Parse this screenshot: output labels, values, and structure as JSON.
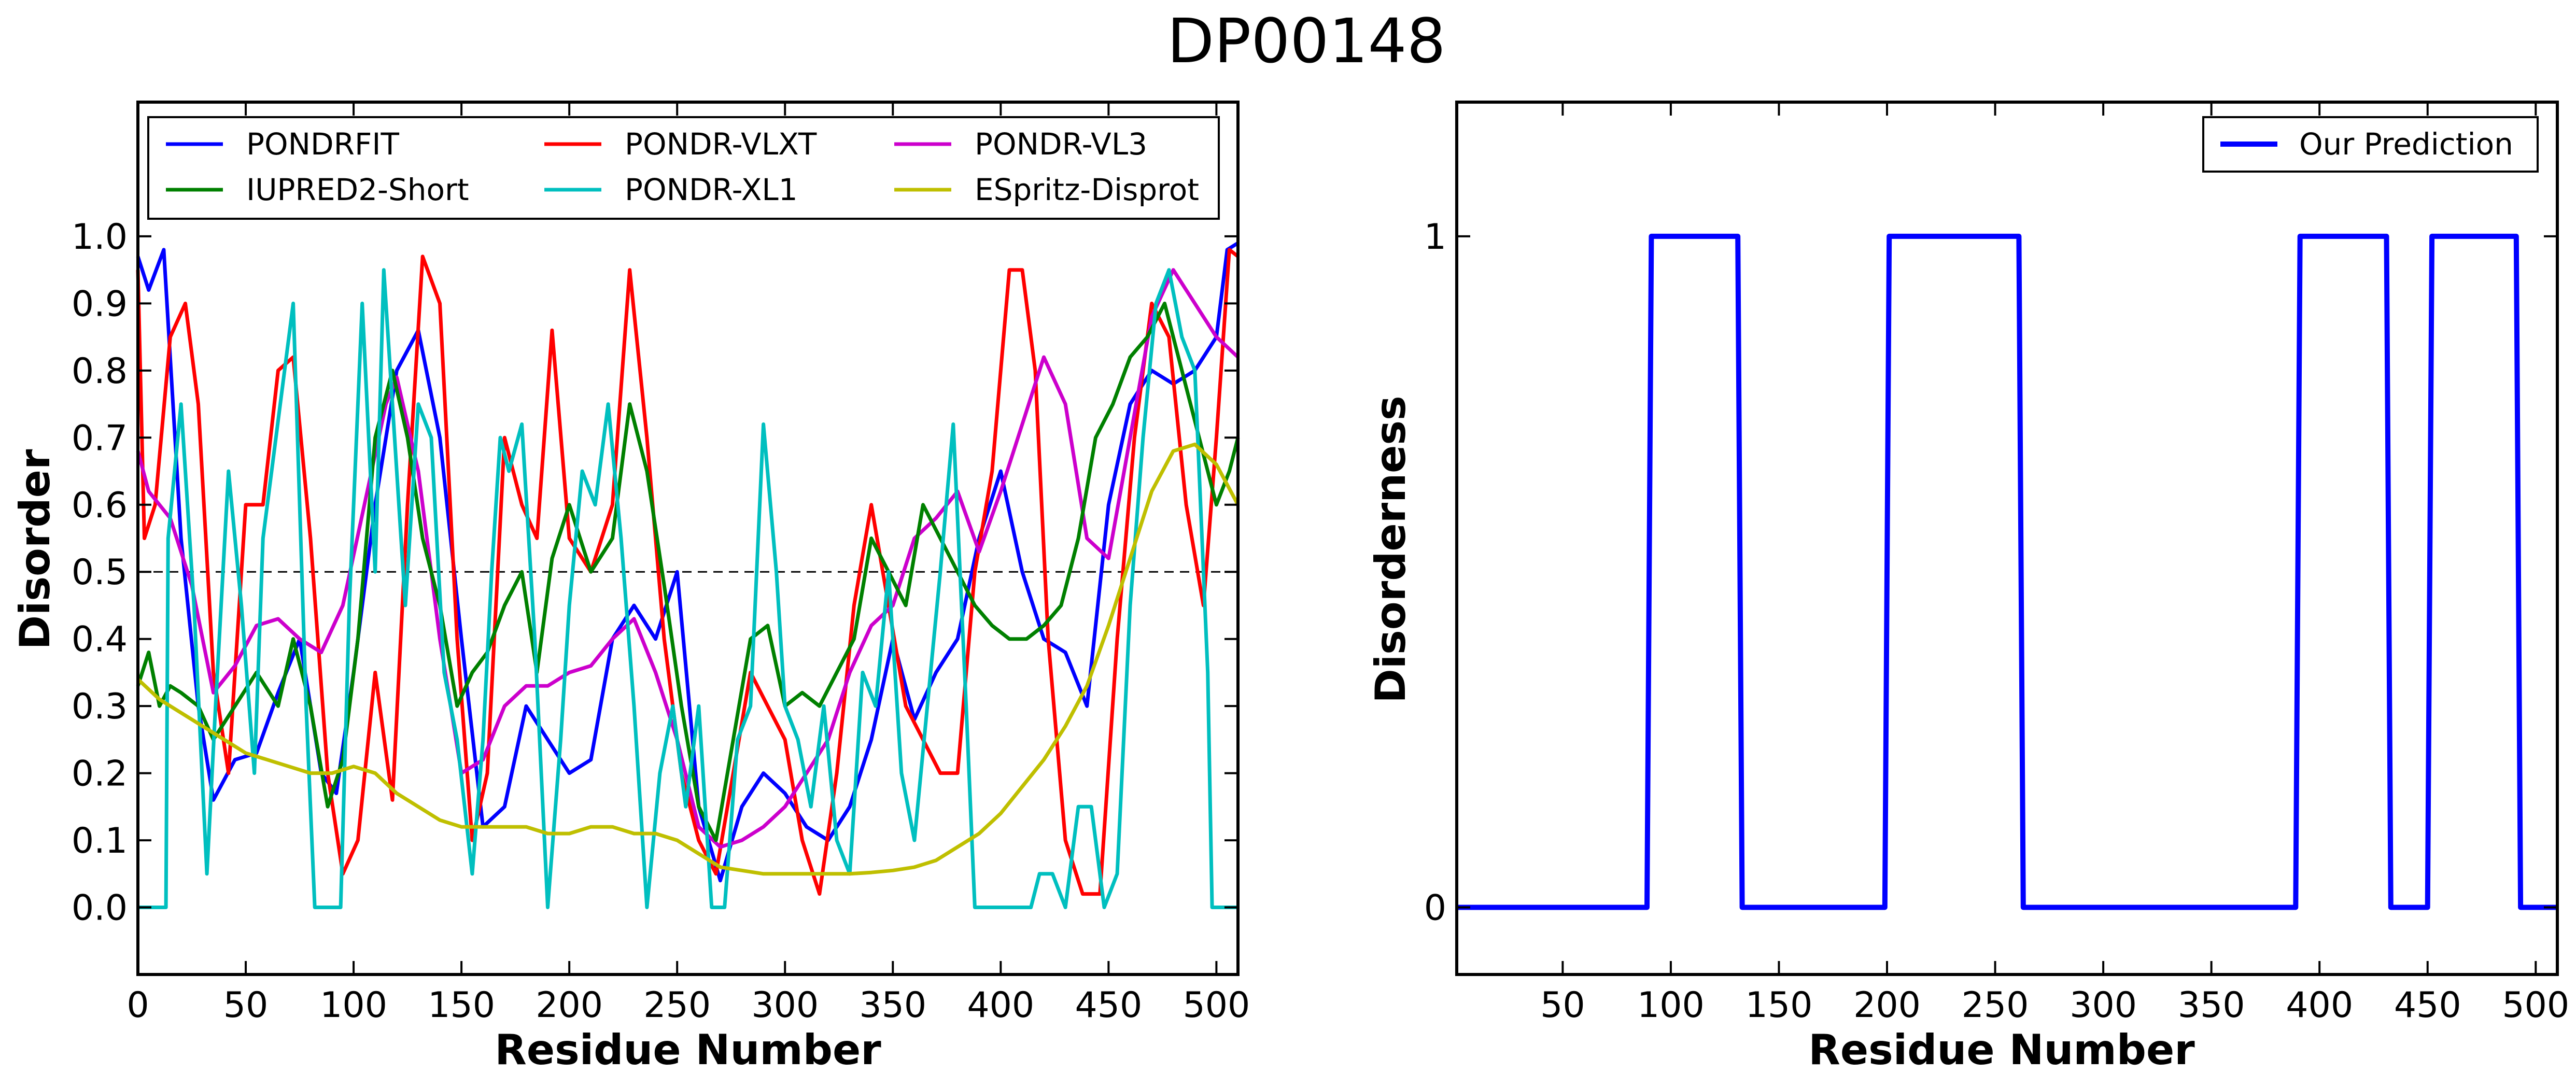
{
  "figure": {
    "title": "DP00148"
  },
  "chart_data": [
    {
      "type": "line",
      "xlabel": "Residue Number",
      "ylabel": "Disorder",
      "xlim": [
        0,
        510
      ],
      "ylim": [
        -0.1,
        1.2
      ],
      "xticks": [
        0,
        50,
        100,
        150,
        200,
        250,
        300,
        350,
        400,
        450,
        500
      ],
      "yticks": [
        0.0,
        0.1,
        0.2,
        0.3,
        0.4,
        0.5,
        0.6,
        0.7,
        0.8,
        0.9,
        1.0
      ],
      "ytick_labels": [
        "0.0",
        "0.1",
        "0.2",
        "0.3",
        "0.4",
        "0.5",
        "0.6",
        "0.7",
        "0.8",
        "0.9",
        "1.0"
      ],
      "threshold": 0.5,
      "legend_position": "top",
      "legend_columns": 3,
      "series": [
        {
          "name": "PONDRFIT",
          "color": "#0000ff",
          "x": [
            0,
            5,
            12,
            20,
            28,
            35,
            45,
            55,
            65,
            75,
            85,
            92,
            100,
            110,
            120,
            130,
            140,
            150,
            160,
            170,
            180,
            190,
            200,
            210,
            220,
            230,
            240,
            250,
            260,
            270,
            280,
            290,
            300,
            310,
            320,
            330,
            340,
            350,
            360,
            370,
            380,
            390,
            400,
            410,
            420,
            430,
            440,
            450,
            460,
            470,
            480,
            490,
            500,
            505,
            510
          ],
          "y": [
            0.97,
            0.92,
            0.98,
            0.55,
            0.3,
            0.16,
            0.22,
            0.23,
            0.32,
            0.4,
            0.2,
            0.17,
            0.35,
            0.6,
            0.8,
            0.86,
            0.7,
            0.4,
            0.12,
            0.15,
            0.3,
            0.25,
            0.2,
            0.22,
            0.4,
            0.45,
            0.4,
            0.5,
            0.15,
            0.04,
            0.15,
            0.2,
            0.17,
            0.12,
            0.1,
            0.15,
            0.25,
            0.4,
            0.28,
            0.35,
            0.4,
            0.55,
            0.65,
            0.5,
            0.4,
            0.38,
            0.3,
            0.6,
            0.75,
            0.8,
            0.78,
            0.8,
            0.85,
            0.98,
            0.99
          ]
        },
        {
          "name": "PONDR-VLXT",
          "color": "#ff0000",
          "x": [
            0,
            3,
            8,
            15,
            22,
            28,
            35,
            42,
            50,
            58,
            65,
            72,
            80,
            88,
            95,
            102,
            110,
            118,
            125,
            132,
            140,
            148,
            155,
            162,
            170,
            178,
            185,
            192,
            200,
            210,
            220,
            228,
            236,
            244,
            252,
            260,
            268,
            276,
            284,
            292,
            300,
            308,
            316,
            324,
            332,
            340,
            348,
            356,
            364,
            372,
            380,
            388,
            396,
            404,
            410,
            416,
            422,
            430,
            438,
            446,
            454,
            462,
            470,
            478,
            486,
            494,
            500,
            506,
            510
          ],
          "y": [
            0.95,
            0.55,
            0.6,
            0.85,
            0.9,
            0.75,
            0.35,
            0.2,
            0.6,
            0.6,
            0.8,
            0.82,
            0.55,
            0.2,
            0.05,
            0.1,
            0.35,
            0.16,
            0.6,
            0.97,
            0.9,
            0.4,
            0.1,
            0.2,
            0.7,
            0.6,
            0.55,
            0.86,
            0.55,
            0.5,
            0.6,
            0.95,
            0.7,
            0.4,
            0.2,
            0.1,
            0.05,
            0.2,
            0.35,
            0.3,
            0.25,
            0.1,
            0.02,
            0.2,
            0.45,
            0.6,
            0.45,
            0.3,
            0.25,
            0.2,
            0.2,
            0.5,
            0.65,
            0.95,
            0.95,
            0.8,
            0.4,
            0.1,
            0.02,
            0.02,
            0.4,
            0.7,
            0.9,
            0.85,
            0.6,
            0.45,
            0.7,
            0.98,
            0.97
          ]
        },
        {
          "name": "PONDR-VL3",
          "color": "#cc00cc",
          "x": [
            0,
            5,
            15,
            25,
            35,
            45,
            55,
            65,
            75,
            85,
            95,
            105,
            115,
            120,
            130,
            140,
            150,
            160,
            170,
            180,
            190,
            200,
            210,
            220,
            230,
            240,
            250,
            260,
            270,
            280,
            290,
            300,
            310,
            320,
            330,
            340,
            350,
            360,
            370,
            380,
            390,
            400,
            410,
            420,
            430,
            440,
            450,
            460,
            470,
            480,
            490,
            500,
            510
          ],
          "y": [
            0.68,
            0.62,
            0.58,
            0.48,
            0.32,
            0.36,
            0.42,
            0.43,
            0.4,
            0.38,
            0.45,
            0.6,
            0.75,
            0.79,
            0.65,
            0.4,
            0.2,
            0.22,
            0.3,
            0.33,
            0.33,
            0.35,
            0.36,
            0.4,
            0.43,
            0.35,
            0.25,
            0.12,
            0.09,
            0.1,
            0.12,
            0.15,
            0.2,
            0.25,
            0.35,
            0.42,
            0.45,
            0.55,
            0.58,
            0.62,
            0.53,
            0.62,
            0.72,
            0.82,
            0.75,
            0.55,
            0.52,
            0.7,
            0.88,
            0.95,
            0.9,
            0.85,
            0.82
          ]
        },
        {
          "name": "IUPRED2-Short",
          "color": "#008000",
          "x": [
            0,
            5,
            10,
            15,
            20,
            28,
            35,
            45,
            55,
            65,
            72,
            80,
            88,
            95,
            102,
            110,
            118,
            125,
            132,
            140,
            148,
            155,
            162,
            170,
            178,
            185,
            192,
            200,
            210,
            220,
            228,
            236,
            244,
            252,
            260,
            268,
            276,
            284,
            292,
            300,
            308,
            316,
            324,
            332,
            340,
            348,
            356,
            364,
            372,
            380,
            388,
            396,
            404,
            412,
            420,
            428,
            436,
            444,
            452,
            460,
            468,
            476,
            484,
            492,
            500,
            506,
            510
          ],
          "y": [
            0.33,
            0.38,
            0.3,
            0.33,
            0.32,
            0.3,
            0.25,
            0.3,
            0.35,
            0.3,
            0.4,
            0.3,
            0.15,
            0.22,
            0.4,
            0.7,
            0.8,
            0.7,
            0.55,
            0.45,
            0.3,
            0.35,
            0.38,
            0.45,
            0.5,
            0.35,
            0.52,
            0.6,
            0.5,
            0.55,
            0.75,
            0.65,
            0.48,
            0.3,
            0.15,
            0.1,
            0.25,
            0.4,
            0.42,
            0.3,
            0.32,
            0.3,
            0.35,
            0.4,
            0.55,
            0.5,
            0.45,
            0.6,
            0.55,
            0.5,
            0.45,
            0.42,
            0.4,
            0.4,
            0.42,
            0.45,
            0.55,
            0.7,
            0.75,
            0.82,
            0.85,
            0.9,
            0.8,
            0.7,
            0.6,
            0.65,
            0.7
          ]
        },
        {
          "name": "PONDR-XL1",
          "color": "#00bfbf",
          "x": [
            0,
            13,
            14,
            20,
            26,
            32,
            36,
            42,
            48,
            54,
            58,
            66,
            72,
            78,
            82,
            86,
            92,
            94,
            98,
            104,
            110,
            114,
            118,
            124,
            130,
            136,
            142,
            148,
            155,
            160,
            164,
            168,
            172,
            178,
            184,
            190,
            196,
            200,
            206,
            212,
            218,
            224,
            230,
            236,
            242,
            248,
            254,
            260,
            266,
            272,
            278,
            284,
            290,
            296,
            300,
            306,
            312,
            318,
            324,
            330,
            336,
            342,
            348,
            354,
            360,
            366,
            372,
            378,
            384,
            388,
            392,
            396,
            402,
            408,
            414,
            418,
            424,
            430,
            436,
            442,
            448,
            454,
            460,
            466,
            472,
            478,
            484,
            490,
            496,
            498,
            500,
            504,
            510
          ],
          "y": [
            0.0,
            0.0,
            0.55,
            0.75,
            0.45,
            0.05,
            0.3,
            0.65,
            0.45,
            0.2,
            0.55,
            0.75,
            0.9,
            0.3,
            0.0,
            0.0,
            0.0,
            0.0,
            0.45,
            0.9,
            0.5,
            0.95,
            0.75,
            0.45,
            0.75,
            0.7,
            0.35,
            0.25,
            0.05,
            0.25,
            0.5,
            0.7,
            0.65,
            0.72,
            0.4,
            0.0,
            0.25,
            0.45,
            0.65,
            0.6,
            0.75,
            0.55,
            0.3,
            0.0,
            0.2,
            0.3,
            0.15,
            0.3,
            0.0,
            0.0,
            0.25,
            0.3,
            0.72,
            0.5,
            0.3,
            0.25,
            0.15,
            0.3,
            0.1,
            0.05,
            0.35,
            0.3,
            0.5,
            0.2,
            0.1,
            0.3,
            0.5,
            0.72,
            0.3,
            0.0,
            0.0,
            0.0,
            0.0,
            0.0,
            0.0,
            0.05,
            0.05,
            0.0,
            0.15,
            0.15,
            0.0,
            0.05,
            0.45,
            0.7,
            0.9,
            0.95,
            0.85,
            0.8,
            0.35,
            0.0,
            0.0,
            0.0,
            0.0
          ]
        },
        {
          "name": "ESpritz-Disprot",
          "color": "#bfbf00",
          "x": [
            0,
            10,
            20,
            30,
            40,
            50,
            60,
            70,
            80,
            90,
            100,
            110,
            120,
            130,
            140,
            150,
            160,
            170,
            180,
            190,
            200,
            210,
            220,
            230,
            240,
            250,
            260,
            270,
            280,
            290,
            300,
            310,
            320,
            330,
            340,
            350,
            360,
            370,
            380,
            390,
            400,
            410,
            420,
            430,
            440,
            450,
            460,
            470,
            480,
            490,
            500,
            510
          ],
          "y": [
            0.34,
            0.31,
            0.29,
            0.27,
            0.25,
            0.23,
            0.22,
            0.21,
            0.2,
            0.2,
            0.21,
            0.2,
            0.17,
            0.15,
            0.13,
            0.12,
            0.12,
            0.12,
            0.12,
            0.11,
            0.11,
            0.12,
            0.12,
            0.11,
            0.11,
            0.1,
            0.08,
            0.06,
            0.055,
            0.05,
            0.05,
            0.05,
            0.05,
            0.05,
            0.052,
            0.055,
            0.06,
            0.07,
            0.09,
            0.11,
            0.14,
            0.18,
            0.22,
            0.27,
            0.33,
            0.42,
            0.52,
            0.62,
            0.68,
            0.69,
            0.66,
            0.6
          ]
        }
      ]
    },
    {
      "type": "line",
      "xlabel": "Residue Number",
      "ylabel": "Disorderness",
      "xlim": [
        1,
        510
      ],
      "ylim": [
        -0.1,
        1.2
      ],
      "xticks": [
        50,
        100,
        150,
        200,
        250,
        300,
        350,
        400,
        450,
        500
      ],
      "yticks": [
        0,
        1
      ],
      "ytick_labels": [
        "0",
        "1"
      ],
      "legend_position": "top-right",
      "series": [
        {
          "name": "Our Prediction",
          "color": "#0000ff",
          "x": [
            1,
            89,
            91,
            131,
            133,
            199,
            201,
            261,
            263,
            389,
            391,
            431,
            433,
            450,
            452,
            491,
            493,
            510
          ],
          "y": [
            0,
            0,
            1,
            1,
            0,
            0,
            1,
            1,
            0,
            0,
            1,
            1,
            0,
            0,
            1,
            1,
            0,
            0
          ]
        }
      ]
    }
  ]
}
